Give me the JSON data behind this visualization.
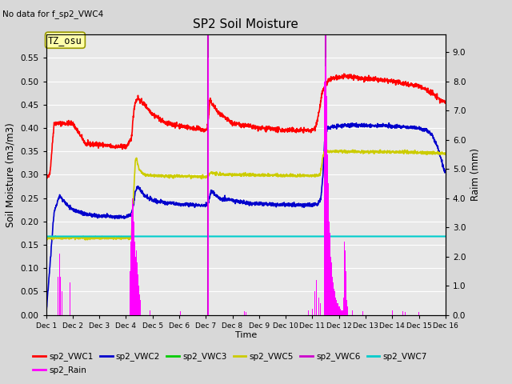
{
  "title": "SP2 Soil Moisture",
  "no_data_text": "No data for f_sp2_VWC4",
  "tz_label": "TZ_osu",
  "xlabel": "Time",
  "ylabel_left": "Soil Moisture (m3/m3)",
  "ylabel_right": "Raim (mm)",
  "ylim_left": [
    0.0,
    0.6
  ],
  "ylim_right": [
    0.0,
    9.6
  ],
  "yticks_left": [
    0.0,
    0.05,
    0.1,
    0.15,
    0.2,
    0.25,
    0.3,
    0.35,
    0.4,
    0.45,
    0.5,
    0.55
  ],
  "yticks_right": [
    0.0,
    1.0,
    2.0,
    3.0,
    4.0,
    5.0,
    6.0,
    7.0,
    8.0,
    9.0
  ],
  "xstart": 0,
  "xend": 15,
  "xtick_positions": [
    0,
    1,
    2,
    3,
    4,
    5,
    6,
    7,
    8,
    9,
    10,
    11,
    12,
    13,
    14,
    15
  ],
  "xtick_labels": [
    "Dec 1",
    "Dec 2",
    "Dec 3",
    "Dec 4",
    "Dec 5",
    "Dec 6",
    "Dec 7",
    "Dec 8",
    "Dec 9",
    "Dec 10",
    "Dec 11",
    "Dec 12",
    "Dec 13",
    "Dec 14",
    "Dec 15",
    "Dec 16"
  ],
  "fig_bg": "#d8d8d8",
  "plot_bg": "#e8e8e8",
  "grid_color": "#ffffff",
  "colors": {
    "sp2_VWC1": "#ff0000",
    "sp2_VWC2": "#0000cc",
    "sp2_VWC3": "#00cc00",
    "sp2_VWC5": "#cccc00",
    "sp2_VWC6": "#cc00cc",
    "sp2_VWC7": "#00cccc",
    "sp2_Rain": "#ff00ff"
  },
  "lw": 1.2,
  "vwc7_value": 0.168,
  "vwc1_segments": [
    [
      0.0,
      0.29
    ],
    [
      0.05,
      0.295
    ],
    [
      0.15,
      0.305
    ],
    [
      0.3,
      0.41
    ],
    [
      1.0,
      0.41
    ],
    [
      1.5,
      0.365
    ],
    [
      2.0,
      0.365
    ],
    [
      2.5,
      0.36
    ],
    [
      3.0,
      0.36
    ],
    [
      3.2,
      0.375
    ],
    [
      3.3,
      0.44
    ],
    [
      3.35,
      0.455
    ],
    [
      3.4,
      0.46
    ],
    [
      3.45,
      0.465
    ],
    [
      3.5,
      0.46
    ],
    [
      3.7,
      0.45
    ],
    [
      4.0,
      0.43
    ],
    [
      4.5,
      0.41
    ],
    [
      5.0,
      0.405
    ],
    [
      5.5,
      0.4
    ],
    [
      6.0,
      0.395
    ],
    [
      6.05,
      0.4
    ],
    [
      6.1,
      0.42
    ],
    [
      6.15,
      0.46
    ],
    [
      6.2,
      0.455
    ],
    [
      6.5,
      0.43
    ],
    [
      7.0,
      0.41
    ],
    [
      7.5,
      0.405
    ],
    [
      8.0,
      0.4
    ],
    [
      9.0,
      0.395
    ],
    [
      9.5,
      0.395
    ],
    [
      10.0,
      0.395
    ],
    [
      10.1,
      0.4
    ],
    [
      10.2,
      0.42
    ],
    [
      10.3,
      0.45
    ],
    [
      10.35,
      0.47
    ],
    [
      10.4,
      0.48
    ],
    [
      10.45,
      0.483
    ],
    [
      10.5,
      0.49
    ],
    [
      10.55,
      0.495
    ],
    [
      10.6,
      0.5
    ],
    [
      10.7,
      0.505
    ],
    [
      11.0,
      0.508
    ],
    [
      11.2,
      0.51
    ],
    [
      11.5,
      0.51
    ],
    [
      12.0,
      0.505
    ],
    [
      12.5,
      0.503
    ],
    [
      13.0,
      0.5
    ],
    [
      13.5,
      0.495
    ],
    [
      14.0,
      0.49
    ],
    [
      14.5,
      0.475
    ],
    [
      14.8,
      0.46
    ],
    [
      15.0,
      0.455
    ]
  ],
  "vwc2_segments": [
    [
      0.0,
      0.0
    ],
    [
      0.3,
      0.22
    ],
    [
      0.5,
      0.255
    ],
    [
      0.8,
      0.235
    ],
    [
      1.0,
      0.225
    ],
    [
      1.5,
      0.215
    ],
    [
      2.0,
      0.212
    ],
    [
      2.5,
      0.21
    ],
    [
      3.0,
      0.21
    ],
    [
      3.2,
      0.215
    ],
    [
      3.3,
      0.24
    ],
    [
      3.35,
      0.265
    ],
    [
      3.4,
      0.27
    ],
    [
      3.45,
      0.275
    ],
    [
      3.5,
      0.27
    ],
    [
      3.7,
      0.255
    ],
    [
      4.0,
      0.245
    ],
    [
      4.5,
      0.24
    ],
    [
      5.0,
      0.237
    ],
    [
      5.5,
      0.235
    ],
    [
      6.0,
      0.235
    ],
    [
      6.1,
      0.24
    ],
    [
      6.15,
      0.255
    ],
    [
      6.2,
      0.265
    ],
    [
      6.3,
      0.26
    ],
    [
      6.5,
      0.25
    ],
    [
      7.0,
      0.245
    ],
    [
      7.5,
      0.24
    ],
    [
      8.0,
      0.238
    ],
    [
      8.5,
      0.237
    ],
    [
      9.0,
      0.236
    ],
    [
      9.5,
      0.235
    ],
    [
      10.0,
      0.235
    ],
    [
      10.2,
      0.238
    ],
    [
      10.3,
      0.245
    ],
    [
      10.35,
      0.265
    ],
    [
      10.4,
      0.3
    ],
    [
      10.45,
      0.36
    ],
    [
      10.5,
      0.395
    ],
    [
      10.6,
      0.4
    ],
    [
      11.0,
      0.405
    ],
    [
      11.5,
      0.406
    ],
    [
      12.0,
      0.405
    ],
    [
      12.5,
      0.405
    ],
    [
      13.0,
      0.404
    ],
    [
      13.5,
      0.403
    ],
    [
      14.0,
      0.4
    ],
    [
      14.3,
      0.395
    ],
    [
      14.5,
      0.385
    ],
    [
      14.7,
      0.36
    ],
    [
      14.9,
      0.32
    ],
    [
      15.0,
      0.305
    ]
  ],
  "vwc5_segments": [
    [
      0.0,
      0.165
    ],
    [
      3.0,
      0.165
    ],
    [
      3.2,
      0.165
    ],
    [
      3.3,
      0.27
    ],
    [
      3.35,
      0.33
    ],
    [
      3.4,
      0.335
    ],
    [
      3.45,
      0.32
    ],
    [
      3.5,
      0.31
    ],
    [
      3.6,
      0.305
    ],
    [
      3.7,
      0.3
    ],
    [
      4.0,
      0.298
    ],
    [
      4.5,
      0.297
    ],
    [
      5.0,
      0.297
    ],
    [
      5.5,
      0.296
    ],
    [
      6.0,
      0.296
    ],
    [
      6.1,
      0.298
    ],
    [
      6.15,
      0.303
    ],
    [
      6.2,
      0.305
    ],
    [
      6.3,
      0.303
    ],
    [
      6.5,
      0.301
    ],
    [
      7.0,
      0.3
    ],
    [
      7.5,
      0.3
    ],
    [
      8.0,
      0.299
    ],
    [
      8.5,
      0.299
    ],
    [
      9.0,
      0.298
    ],
    [
      9.5,
      0.298
    ],
    [
      10.0,
      0.298
    ],
    [
      10.3,
      0.3
    ],
    [
      10.35,
      0.32
    ],
    [
      10.4,
      0.34
    ],
    [
      10.45,
      0.35
    ],
    [
      10.5,
      0.35
    ],
    [
      11.0,
      0.35
    ],
    [
      12.0,
      0.349
    ],
    [
      13.0,
      0.349
    ],
    [
      14.0,
      0.348
    ],
    [
      14.5,
      0.347
    ],
    [
      15.0,
      0.345
    ]
  ],
  "rain_bars": [
    [
      0.45,
      1.3
    ],
    [
      0.5,
      2.1
    ],
    [
      0.55,
      1.3
    ],
    [
      0.6,
      0.8
    ],
    [
      0.9,
      1.1
    ],
    [
      3.15,
      1.5
    ],
    [
      3.18,
      2.5
    ],
    [
      3.21,
      3.5
    ],
    [
      3.24,
      4.0
    ],
    [
      3.27,
      3.8
    ],
    [
      3.3,
      3.2
    ],
    [
      3.33,
      2.5
    ],
    [
      3.36,
      2.0
    ],
    [
      3.39,
      2.2
    ],
    [
      3.42,
      1.8
    ],
    [
      3.45,
      1.4
    ],
    [
      3.48,
      1.0
    ],
    [
      3.51,
      0.7
    ],
    [
      3.54,
      0.5
    ],
    [
      3.9,
      0.15
    ],
    [
      5.05,
      0.12
    ],
    [
      6.08,
      9.0
    ],
    [
      6.09,
      8.8
    ],
    [
      6.1,
      8.5
    ],
    [
      7.45,
      0.12
    ],
    [
      7.5,
      0.1
    ],
    [
      9.85,
      0.15
    ],
    [
      10.0,
      0.2
    ],
    [
      10.05,
      0.5
    ],
    [
      10.1,
      0.8
    ],
    [
      10.15,
      1.2
    ],
    [
      10.2,
      0.9
    ],
    [
      10.25,
      0.6
    ],
    [
      10.3,
      0.4
    ],
    [
      10.45,
      8.0
    ],
    [
      10.48,
      8.5
    ],
    [
      10.5,
      9.0
    ],
    [
      10.52,
      8.8
    ],
    [
      10.54,
      7.5
    ],
    [
      10.56,
      6.5
    ],
    [
      10.58,
      5.5
    ],
    [
      10.6,
      4.5
    ],
    [
      10.62,
      3.8
    ],
    [
      10.64,
      3.2
    ],
    [
      10.66,
      2.8
    ],
    [
      10.68,
      2.4
    ],
    [
      10.7,
      2.0
    ],
    [
      10.72,
      1.8
    ],
    [
      10.74,
      1.5
    ],
    [
      10.76,
      1.3
    ],
    [
      10.78,
      1.1
    ],
    [
      10.8,
      1.0
    ],
    [
      10.82,
      0.9
    ],
    [
      10.84,
      0.8
    ],
    [
      10.86,
      0.7
    ],
    [
      10.88,
      0.6
    ],
    [
      10.9,
      0.5
    ],
    [
      10.92,
      0.5
    ],
    [
      10.94,
      0.4
    ],
    [
      10.96,
      0.4
    ],
    [
      10.98,
      0.3
    ],
    [
      11.0,
      0.3
    ],
    [
      11.02,
      0.3
    ],
    [
      11.04,
      0.25
    ],
    [
      11.06,
      0.2
    ],
    [
      11.08,
      0.15
    ],
    [
      11.1,
      0.15
    ],
    [
      11.12,
      0.15
    ],
    [
      11.14,
      0.15
    ],
    [
      11.16,
      0.2
    ],
    [
      11.18,
      0.6
    ],
    [
      11.2,
      2.5
    ],
    [
      11.22,
      2.8
    ],
    [
      11.24,
      2.2
    ],
    [
      11.26,
      1.5
    ],
    [
      11.28,
      0.9
    ],
    [
      11.3,
      0.5
    ],
    [
      11.32,
      0.3
    ],
    [
      11.5,
      0.15
    ],
    [
      11.55,
      0.1
    ],
    [
      11.9,
      0.12
    ],
    [
      12.0,
      0.1
    ],
    [
      13.0,
      0.15
    ],
    [
      13.4,
      0.12
    ],
    [
      13.5,
      0.1
    ],
    [
      14.0,
      0.1
    ]
  ]
}
